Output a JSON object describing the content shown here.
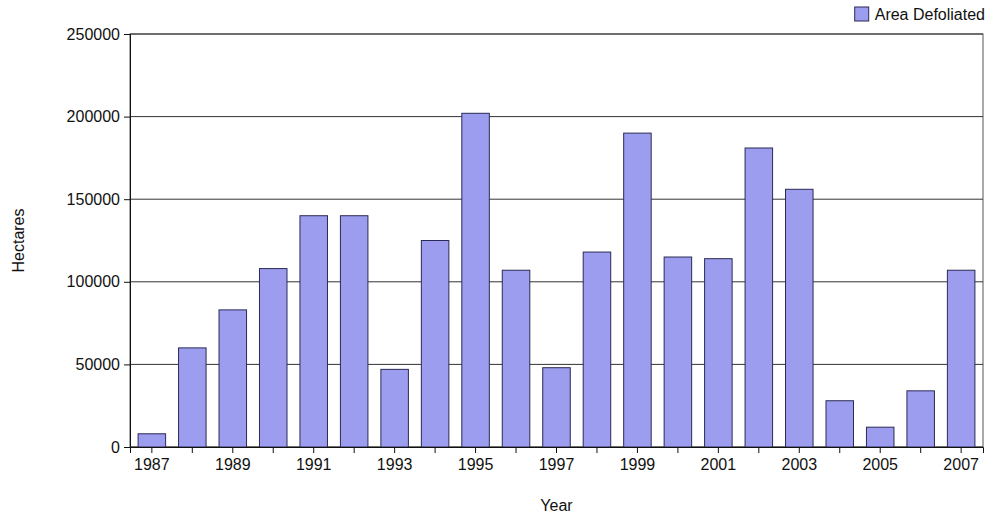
{
  "chart_data": {
    "type": "bar",
    "xlabel": "Year",
    "ylabel": "Hectares",
    "categories": [
      "1987",
      null,
      "1989",
      null,
      "1991",
      null,
      "1993",
      null,
      "1995",
      null,
      "1997",
      null,
      "1999",
      null,
      "2001",
      null,
      "2003",
      null,
      "2005",
      null,
      "2007"
    ],
    "series": [
      {
        "name": "Area Defoliated",
        "color": "#9d9df0",
        "values": [
          8000,
          60000,
          83000,
          108000,
          140000,
          140000,
          47000,
          125000,
          202000,
          107000,
          48000,
          118000,
          190000,
          115000,
          114000,
          181000,
          156000,
          28000,
          12000,
          34000,
          107000
        ]
      }
    ],
    "ylim": [
      0,
      250000
    ],
    "yticks": [
      0,
      50000,
      100000,
      150000,
      200000,
      250000
    ],
    "grid": true,
    "legend": "top-right"
  }
}
